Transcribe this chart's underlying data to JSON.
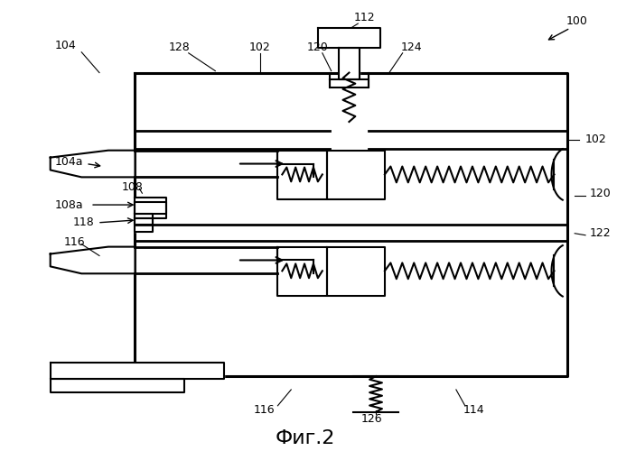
{
  "title": "Фиг.2",
  "bg_color": "#ffffff",
  "line_color": "#000000",
  "lw": 1.5
}
